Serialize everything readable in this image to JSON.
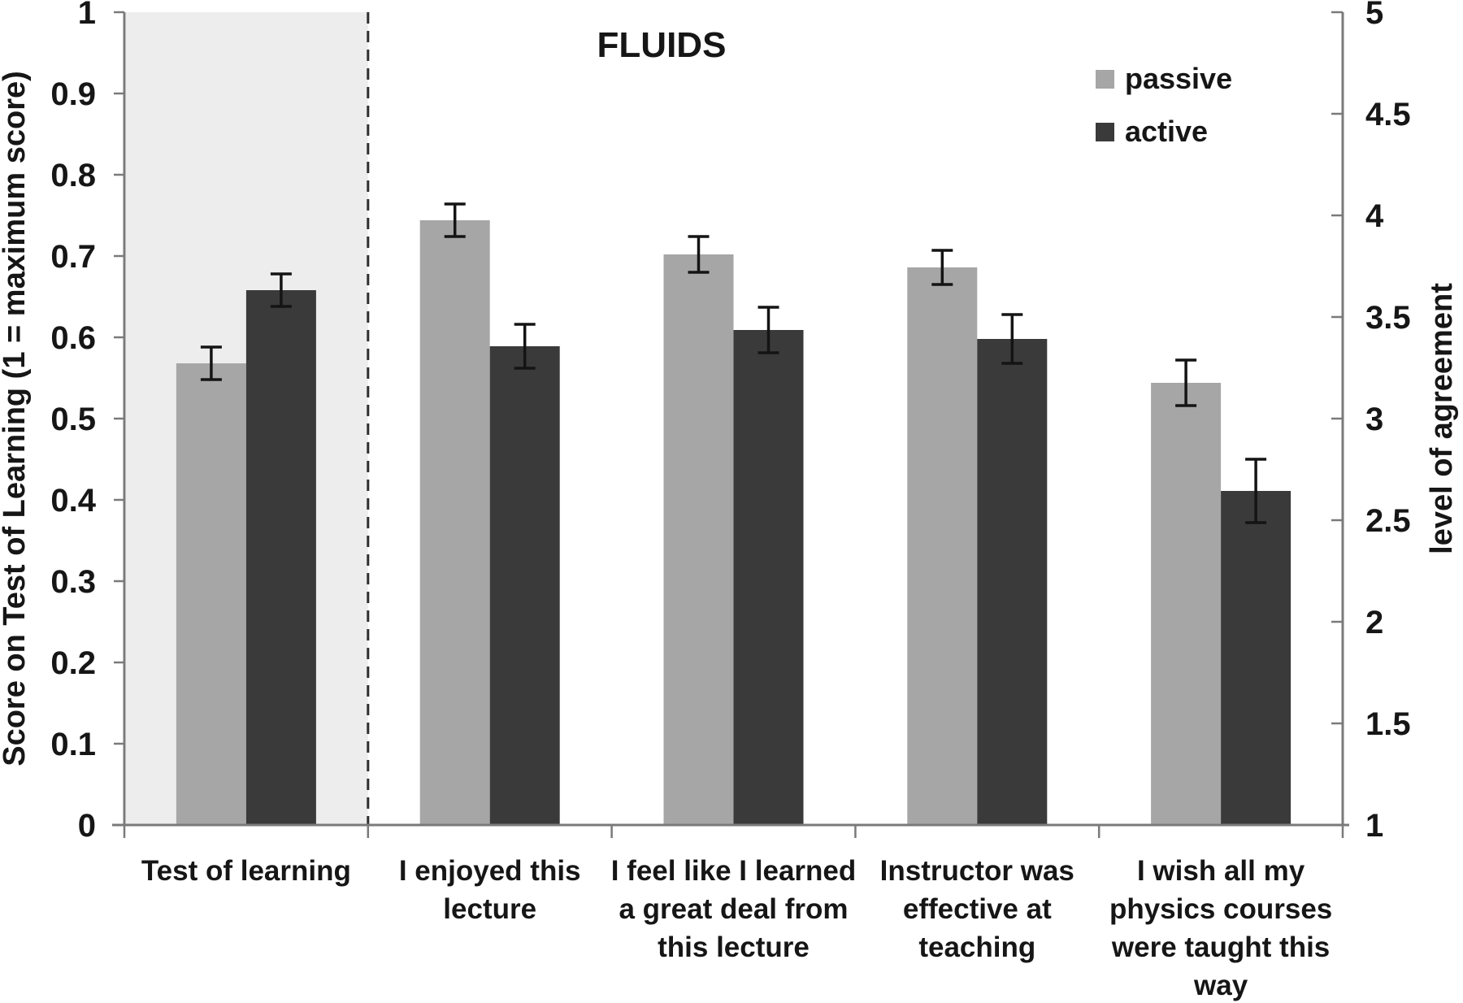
{
  "chart_data": {
    "type": "bar",
    "title": "FLUIDS",
    "left_axis": {
      "label": "Score on Test of Learning  (1 = maximum score)",
      "range": [
        0,
        1
      ],
      "ticks": [
        "1",
        "0.9",
        "0.8",
        "0.7",
        "0.6",
        "0.5",
        "0.4",
        "0.3",
        "0.2",
        "0.1",
        "0"
      ]
    },
    "right_axis": {
      "label": "level of agreement",
      "range": [
        1,
        5
      ],
      "ticks": [
        "5",
        "4.5",
        "4",
        "3.5",
        "3",
        "2.5",
        "2",
        "1.5",
        "1"
      ]
    },
    "categories": [
      {
        "label_lines": [
          "Test of learning"
        ],
        "shaded": true,
        "scale": "left"
      },
      {
        "label_lines": [
          "I enjoyed this",
          "lecture"
        ],
        "shaded": false,
        "scale": "right"
      },
      {
        "label_lines": [
          "I feel like I learned",
          "a great deal from",
          "this lecture"
        ],
        "shaded": false,
        "scale": "right"
      },
      {
        "label_lines": [
          "Instructor was",
          "effective at",
          "teaching"
        ],
        "shaded": false,
        "scale": "right"
      },
      {
        "label_lines": [
          "I wish all my",
          "physics courses",
          "were taught this",
          "way"
        ],
        "shaded": false,
        "scale": "right"
      }
    ],
    "series": [
      {
        "name": "passive",
        "color": "#a6a6a6",
        "values_left_scale": [
          0.568,
          0.744,
          0.702,
          0.686,
          0.544
        ],
        "errors_left_scale": [
          0.02,
          0.02,
          0.022,
          0.021,
          0.028
        ],
        "values_right_scale": [
          null,
          3.98,
          3.81,
          3.74,
          3.18
        ]
      },
      {
        "name": "active",
        "color": "#3a3a3a",
        "values_left_scale": [
          0.658,
          0.589,
          0.609,
          0.598,
          0.411
        ],
        "errors_left_scale": [
          0.02,
          0.027,
          0.028,
          0.03,
          0.039
        ],
        "values_right_scale": [
          null,
          3.36,
          3.44,
          3.39,
          2.64
        ]
      }
    ],
    "separator": {
      "style": "dashed",
      "after_category_index": 0
    },
    "legend_position": "top-right",
    "grid": "off",
    "error_bars": "on",
    "colors": {
      "axis": "#7a7a7a",
      "shaded_region": "#ededed",
      "dashed_separator": "#2f2f2f",
      "error_bar": "#141414",
      "background": "#ffffff",
      "text": "#161616"
    }
  }
}
